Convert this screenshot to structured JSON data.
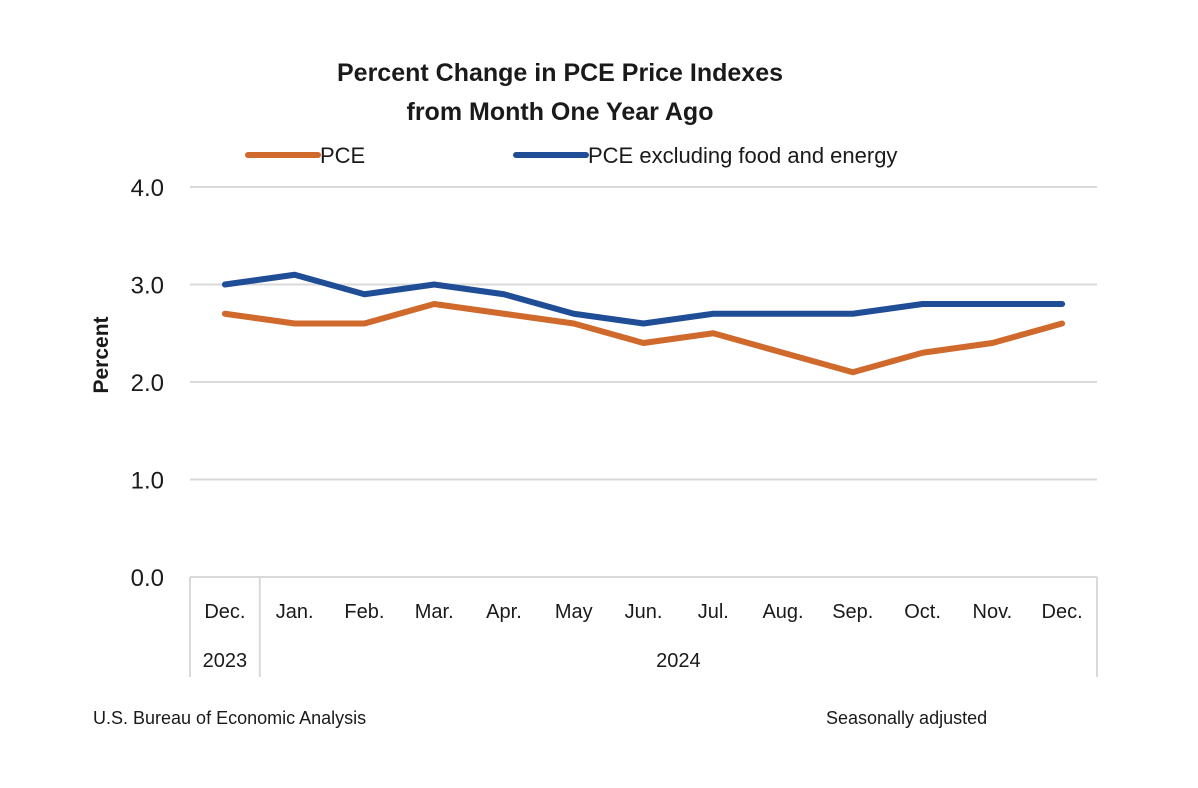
{
  "chart_data": {
    "type": "line",
    "title": "Percent Change in PCE Price Indexes",
    "subtitle": "from Month One Year Ago",
    "xlabel": "",
    "ylabel": "Percent",
    "ylim": [
      0,
      4
    ],
    "yticks": [
      "0.0",
      "1.0",
      "2.0",
      "3.0",
      "4.0"
    ],
    "grid": true,
    "legend_position": "top",
    "categories": [
      "Dec.",
      "Jan.",
      "Feb.",
      "Mar.",
      "Apr.",
      "May",
      "Jun.",
      "Jul.",
      "Aug.",
      "Sep.",
      "Oct.",
      "Nov.",
      "Dec."
    ],
    "year_groups": [
      {
        "label": "2023",
        "count": 1
      },
      {
        "label": "2024",
        "count": 12
      }
    ],
    "series": [
      {
        "name": "PCE",
        "color": "#d0692c",
        "values": [
          2.7,
          2.6,
          2.6,
          2.8,
          2.7,
          2.6,
          2.4,
          2.5,
          2.3,
          2.1,
          2.3,
          2.4,
          2.6
        ]
      },
      {
        "name": "PCE excluding food and energy",
        "color": "#1f4e96",
        "values": [
          3.0,
          3.1,
          2.9,
          3.0,
          2.9,
          2.7,
          2.6,
          2.7,
          2.7,
          2.7,
          2.8,
          2.8,
          2.8
        ]
      }
    ]
  },
  "footer": {
    "source": "U.S. Bureau of Economic Analysis",
    "note": "Seasonally adjusted"
  }
}
